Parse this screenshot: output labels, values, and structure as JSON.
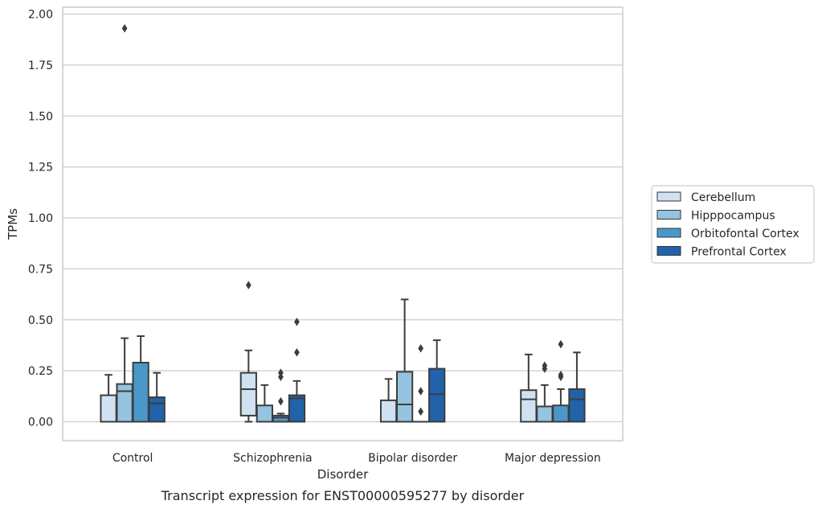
{
  "chart_data": {
    "type": "box",
    "xlabel": "Disorder",
    "ylabel": "TPMs",
    "caption": "Transcript expression for ENST00000595277 by disorder",
    "ylim": [
      -0.095,
      2.03
    ],
    "yticks": [
      "0.00",
      "0.25",
      "0.50",
      "0.75",
      "1.00",
      "1.25",
      "1.50",
      "1.75",
      "2.00"
    ],
    "grid": "horizontal",
    "legend_position": "right",
    "categories": [
      "Control",
      "Schizophrenia",
      "Bipolar disorder",
      "Major depression"
    ],
    "series": [
      {
        "name": "Cerebellum",
        "color": "#d0e1f2",
        "boxes": [
          {
            "whislo": 0.0,
            "q1": 0.0,
            "med": 0.0,
            "q3": 0.13,
            "whishi": 0.23,
            "fliers": []
          },
          {
            "whislo": 0.0,
            "q1": 0.03,
            "med": 0.16,
            "q3": 0.24,
            "whishi": 0.35,
            "fliers": [
              0.67
            ]
          },
          {
            "whislo": 0.0,
            "q1": 0.0,
            "med": 0.0,
            "q3": 0.105,
            "whishi": 0.21,
            "fliers": []
          },
          {
            "whislo": 0.0,
            "q1": 0.0,
            "med": 0.11,
            "q3": 0.155,
            "whishi": 0.33,
            "fliers": []
          }
        ]
      },
      {
        "name": "Hipppocampus",
        "color": "#94c4df",
        "boxes": [
          {
            "whislo": 0.0,
            "q1": 0.0,
            "med": 0.15,
            "q3": 0.185,
            "whishi": 0.41,
            "fliers": [
              1.93
            ]
          },
          {
            "whislo": 0.0,
            "q1": 0.0,
            "med": 0.0,
            "q3": 0.08,
            "whishi": 0.18,
            "fliers": []
          },
          {
            "whislo": 0.0,
            "q1": 0.0,
            "med": 0.085,
            "q3": 0.245,
            "whishi": 0.6,
            "fliers": []
          },
          {
            "whislo": 0.0,
            "q1": 0.0,
            "med": 0.0,
            "q3": 0.075,
            "whishi": 0.18,
            "fliers": [
              0.26,
              0.275
            ]
          }
        ]
      },
      {
        "name": "Orbitofontal Cortex",
        "color": "#4a98c9",
        "boxes": [
          {
            "whislo": 0.0,
            "q1": 0.0,
            "med": 0.0,
            "q3": 0.29,
            "whishi": 0.42,
            "fliers": []
          },
          {
            "whislo": 0.0,
            "q1": 0.0,
            "med": 0.02,
            "q3": 0.03,
            "whishi": 0.04,
            "fliers": [
              0.1,
              0.22,
              0.24
            ]
          },
          {
            "whislo": 0.0,
            "q1": 0.0,
            "med": 0.0,
            "q3": 0.0,
            "whishi": 0.0,
            "fliers": [
              0.05,
              0.15,
              0.36
            ]
          },
          {
            "whislo": 0.0,
            "q1": 0.0,
            "med": 0.0,
            "q3": 0.08,
            "whishi": 0.16,
            "fliers": [
              0.22,
              0.23,
              0.38
            ]
          }
        ]
      },
      {
        "name": "Prefrontal Cortex",
        "color": "#2163aa",
        "boxes": [
          {
            "whislo": 0.0,
            "q1": 0.0,
            "med": 0.09,
            "q3": 0.12,
            "whishi": 0.24,
            "fliers": []
          },
          {
            "whislo": 0.0,
            "q1": 0.0,
            "med": 0.115,
            "q3": 0.13,
            "whishi": 0.2,
            "fliers": [
              0.34,
              0.49
            ]
          },
          {
            "whislo": 0.0,
            "q1": 0.0,
            "med": 0.135,
            "q3": 0.26,
            "whishi": 0.4,
            "fliers": []
          },
          {
            "whislo": 0.0,
            "q1": 0.0,
            "med": 0.11,
            "q3": 0.16,
            "whishi": 0.34,
            "fliers": []
          }
        ]
      }
    ]
  }
}
